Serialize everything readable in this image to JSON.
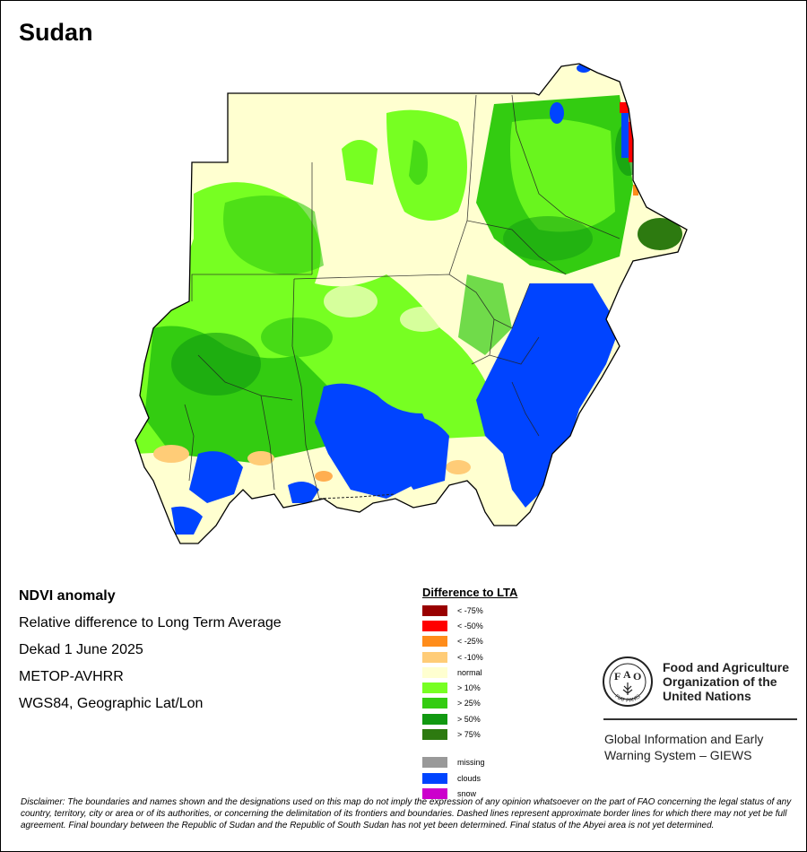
{
  "title": "Sudan",
  "info": {
    "product": "NDVI anomaly",
    "description": "Relative difference to Long Term Average",
    "period": "Dekad 1 June 2025",
    "sensor": "METOP-AVHRR",
    "projection": "WGS84, Geographic Lat/Lon"
  },
  "legend": {
    "title": "Difference to LTA",
    "items": [
      {
        "label": "< -75%",
        "color": "#990000"
      },
      {
        "label": "< -50%",
        "color": "#ff0000"
      },
      {
        "label": "< -25%",
        "color": "#ff8c1a"
      },
      {
        "label": "< -10%",
        "color": "#ffcc77"
      },
      {
        "label": "normal",
        "color": "#ffffd0"
      },
      {
        "label": "> 10%",
        "color": "#77ff22"
      },
      {
        "label": "> 25%",
        "color": "#33cc11"
      },
      {
        "label": "> 50%",
        "color": "#119911"
      },
      {
        "label": "> 75%",
        "color": "#2d7a10"
      }
    ],
    "extra": [
      {
        "label": "missing",
        "color": "#999999"
      },
      {
        "label": "clouds",
        "color": "#0044ff"
      },
      {
        "label": "snow",
        "color": "#cc00cc"
      }
    ]
  },
  "fao": {
    "logo_text": "FIAT PANIS",
    "name_lines": [
      "Food and Agriculture",
      "Organization of the",
      "United Nations"
    ],
    "giews_lines": [
      "Global Information and Early",
      "Warning System – GIEWS"
    ]
  },
  "disclaimer": "Disclaimer: The boundaries and names shown and the designations used on this map do not imply the expression of any opinion whatsoever on the part of FAO concerning the legal status of any country, territory, city or area or of its authorities, or concerning the delimitation of its frontiers and boundaries. Dashed lines represent approximate border lines for which there may not yet be full agreement.  Final boundary between the Republic of Sudan and the Republic of South Sudan has not yet been determined. Final status of the Abyei area is not yet determined."
}
